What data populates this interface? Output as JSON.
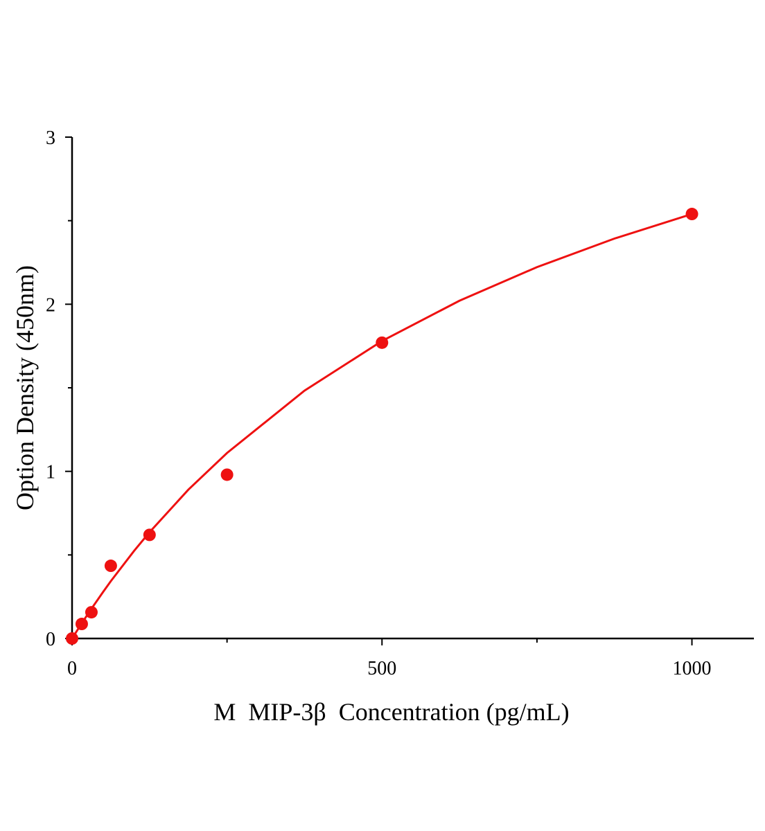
{
  "chart_data": {
    "type": "scatter",
    "x_label": "M  MIP-3β  Concentration (pg/mL)",
    "y_label": "Option Density (450nm)",
    "series": [
      {
        "color": "#ee1111",
        "x": [
          0,
          15.6,
          31.25,
          62.5,
          125,
          250,
          500,
          1000
        ],
        "values": [
          0,
          0.087,
          0.157,
          0.435,
          0.62,
          0.98,
          1.77,
          2.54
        ]
      }
    ],
    "fit": {
      "color": "#ee1111",
      "x": [
        0,
        15.6,
        31.25,
        50,
        62.5,
        100,
        125,
        187.5,
        250,
        375,
        500,
        625,
        750,
        875,
        1000
      ],
      "values": [
        0,
        0.091,
        0.178,
        0.278,
        0.343,
        0.524,
        0.636,
        0.89,
        1.11,
        1.483,
        1.78,
        2.021,
        2.222,
        2.393,
        2.54
      ]
    },
    "xlim": [
      0,
      1100
    ],
    "xticks": [
      0,
      500,
      1000
    ],
    "xminorticks": [
      250,
      750
    ],
    "ylim": [
      0,
      3
    ],
    "yticks": [
      0,
      1,
      2,
      3
    ],
    "yminorticks": [
      0.5,
      1.5,
      2.5
    ]
  }
}
